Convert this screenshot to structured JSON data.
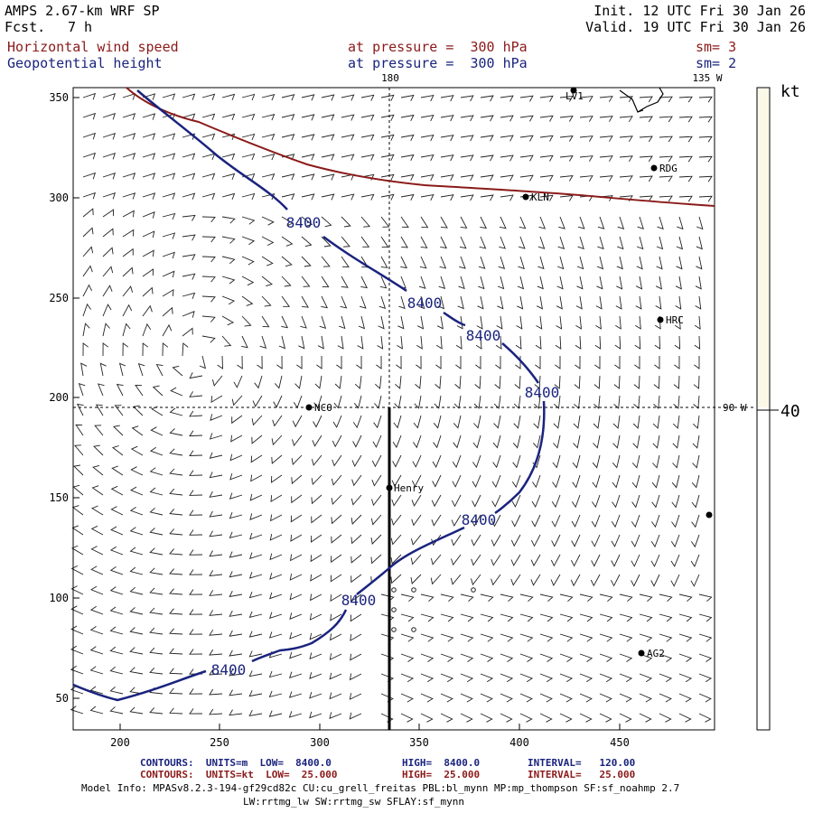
{
  "header": {
    "model": "AMPS 2.67-km WRF SP",
    "forecast_label": "Fcst.",
    "forecast_value": "7 h",
    "init": "Init. 12 UTC Fri 30 Jan 26",
    "valid": "Valid. 19 UTC Fri 30 Jan 26",
    "field1_name": "Horizontal wind speed",
    "field1_level": "at pressure =  300 hPa",
    "field1_sm": "sm= 3",
    "field2_name": "Geopotential height",
    "field2_level": "at pressure =  300 hPa",
    "field2_sm": "sm= 2"
  },
  "map": {
    "x_ticks": [
      "200",
      "250",
      "300",
      "350",
      "400",
      "450"
    ],
    "y_ticks": [
      "50",
      "100",
      "150",
      "200",
      "250",
      "300",
      "350"
    ],
    "longitude_labels": {
      "top_180": "180",
      "top_135w": "135 W",
      "right_90w": "90 W"
    },
    "stations": [
      {
        "name": "LV1"
      },
      {
        "name": "RDG"
      },
      {
        "name": "KLN"
      },
      {
        "name": "HRC"
      },
      {
        "name": "NCO"
      },
      {
        "name": "Henry"
      },
      {
        "name": "AG2"
      }
    ],
    "contour_label": "8400"
  },
  "colorbar": {
    "unit": "kt",
    "value_label": "40"
  },
  "footer": {
    "line1_left": "CONTOURS:  UNITS=m  LOW=  8400.0",
    "line1_mid": "HIGH=  8400.0",
    "line1_right": "INTERVAL=   120.00",
    "line2_left": "CONTOURS:  UNITS=kt  LOW=  25.000",
    "line2_mid": "HIGH=  25.000",
    "line2_right": "INTERVAL=   25.000",
    "model_info": "Model Info: MPASv8.2.3-194-gf29cd82c CU:cu_grell_freitas PBL:bl_mynn MP:mp_thompson SF:sf_noahmp 2.7",
    "model_info2": "LW:rrtmg_lw SW:rrtmg_sw SFLAY:sf_mynn"
  },
  "colors": {
    "height_contour": "#1a237e",
    "wind_contour": "#8b1a1a",
    "barb": "#222222"
  }
}
